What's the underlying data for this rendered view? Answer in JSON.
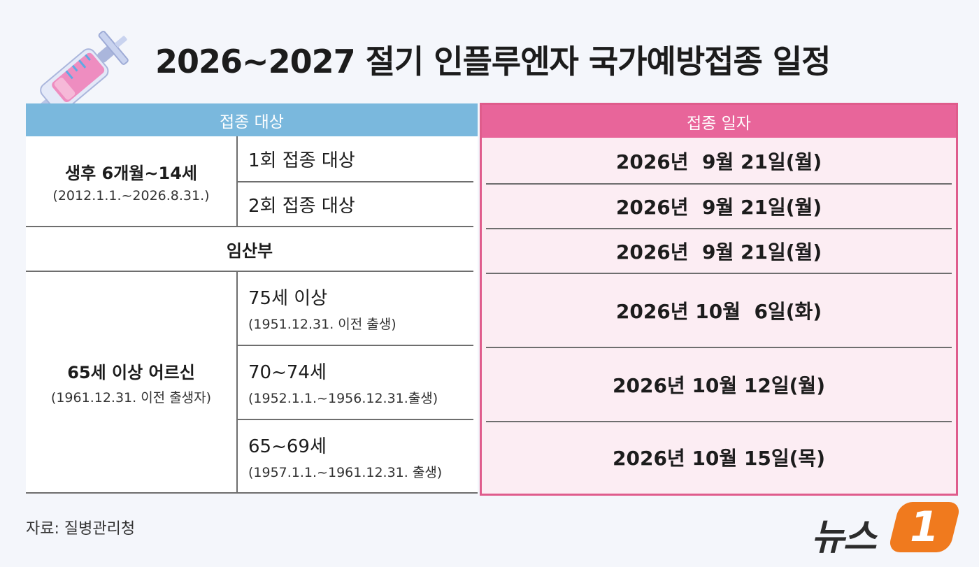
{
  "title": "2026~2027 절기 인플루엔자 국가예방접종 일정",
  "left_header": "접종 대상",
  "right_header": "접종 일자",
  "groups": {
    "child": {
      "label": "생후 6개월~14세",
      "range": "(2012.1.1.~2026.8.31.)",
      "rows": [
        {
          "label": "1회 접종 대상",
          "date": "2026년  9월 21일(월)"
        },
        {
          "label": "2회 접종 대상",
          "date": "2026년  9월 21일(월)"
        }
      ]
    },
    "pregnant": {
      "label": "임산부",
      "date": "2026년  9월 21일(월)"
    },
    "senior": {
      "label": "65세 이상 어르신",
      "range": "(1961.12.31. 이전 출생자)",
      "rows": [
        {
          "label": "75세 이상",
          "note": "(1951.12.31. 이전 출생)",
          "date": "2026년 10월  6일(화)"
        },
        {
          "label": "70~74세",
          "note": "(1952.1.1.~1956.12.31.출생)",
          "date": "2026년 10월 12일(월)"
        },
        {
          "label": "65~69세",
          "note": "(1957.1.1.~1961.12.31. 출생)",
          "date": "2026년 10월 15일(목)"
        }
      ]
    }
  },
  "source": "자료: 질병관리청",
  "logo": {
    "text": "뉴스",
    "badge": "1"
  },
  "colors": {
    "left_header_bg": "#7ab8dd",
    "right_header_bg": "#e8659a",
    "right_border": "#df5c8c",
    "right_body_bg": "#fcedf3",
    "logo_badge": "#f07a1e"
  },
  "icons": {
    "header_illustration": "syringe-icon"
  }
}
